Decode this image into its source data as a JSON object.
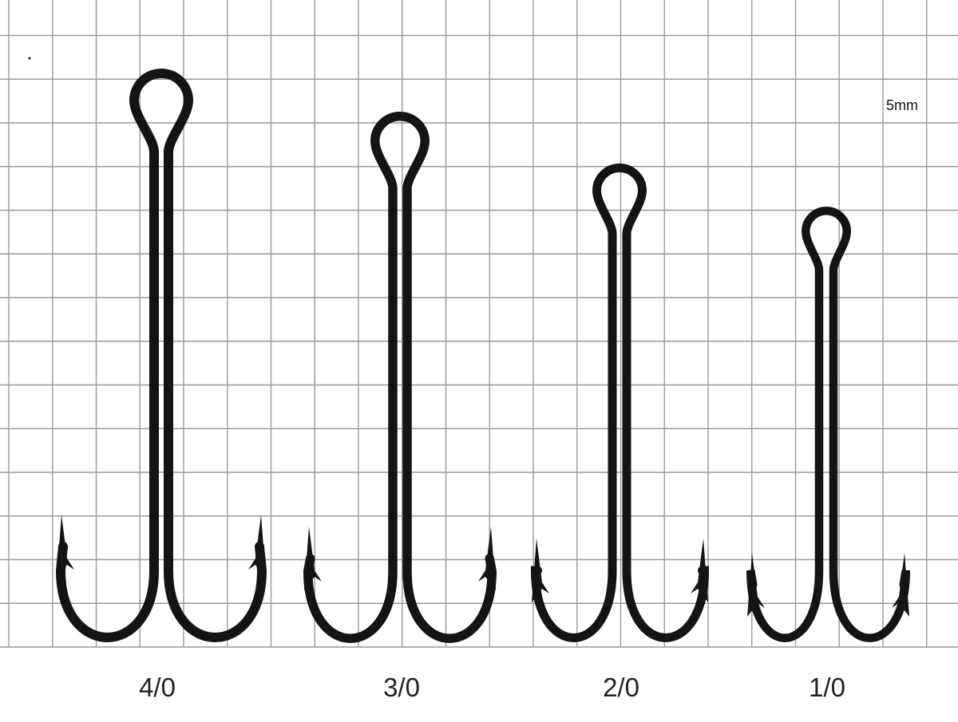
{
  "scale_label": "5mm",
  "hooks": [
    {
      "size": "4/0"
    },
    {
      "size": "3/0"
    },
    {
      "size": "2/0"
    },
    {
      "size": "1/0"
    }
  ],
  "colors": {
    "grid": "#999999",
    "hook": "#141414",
    "background": "#ffffff"
  }
}
